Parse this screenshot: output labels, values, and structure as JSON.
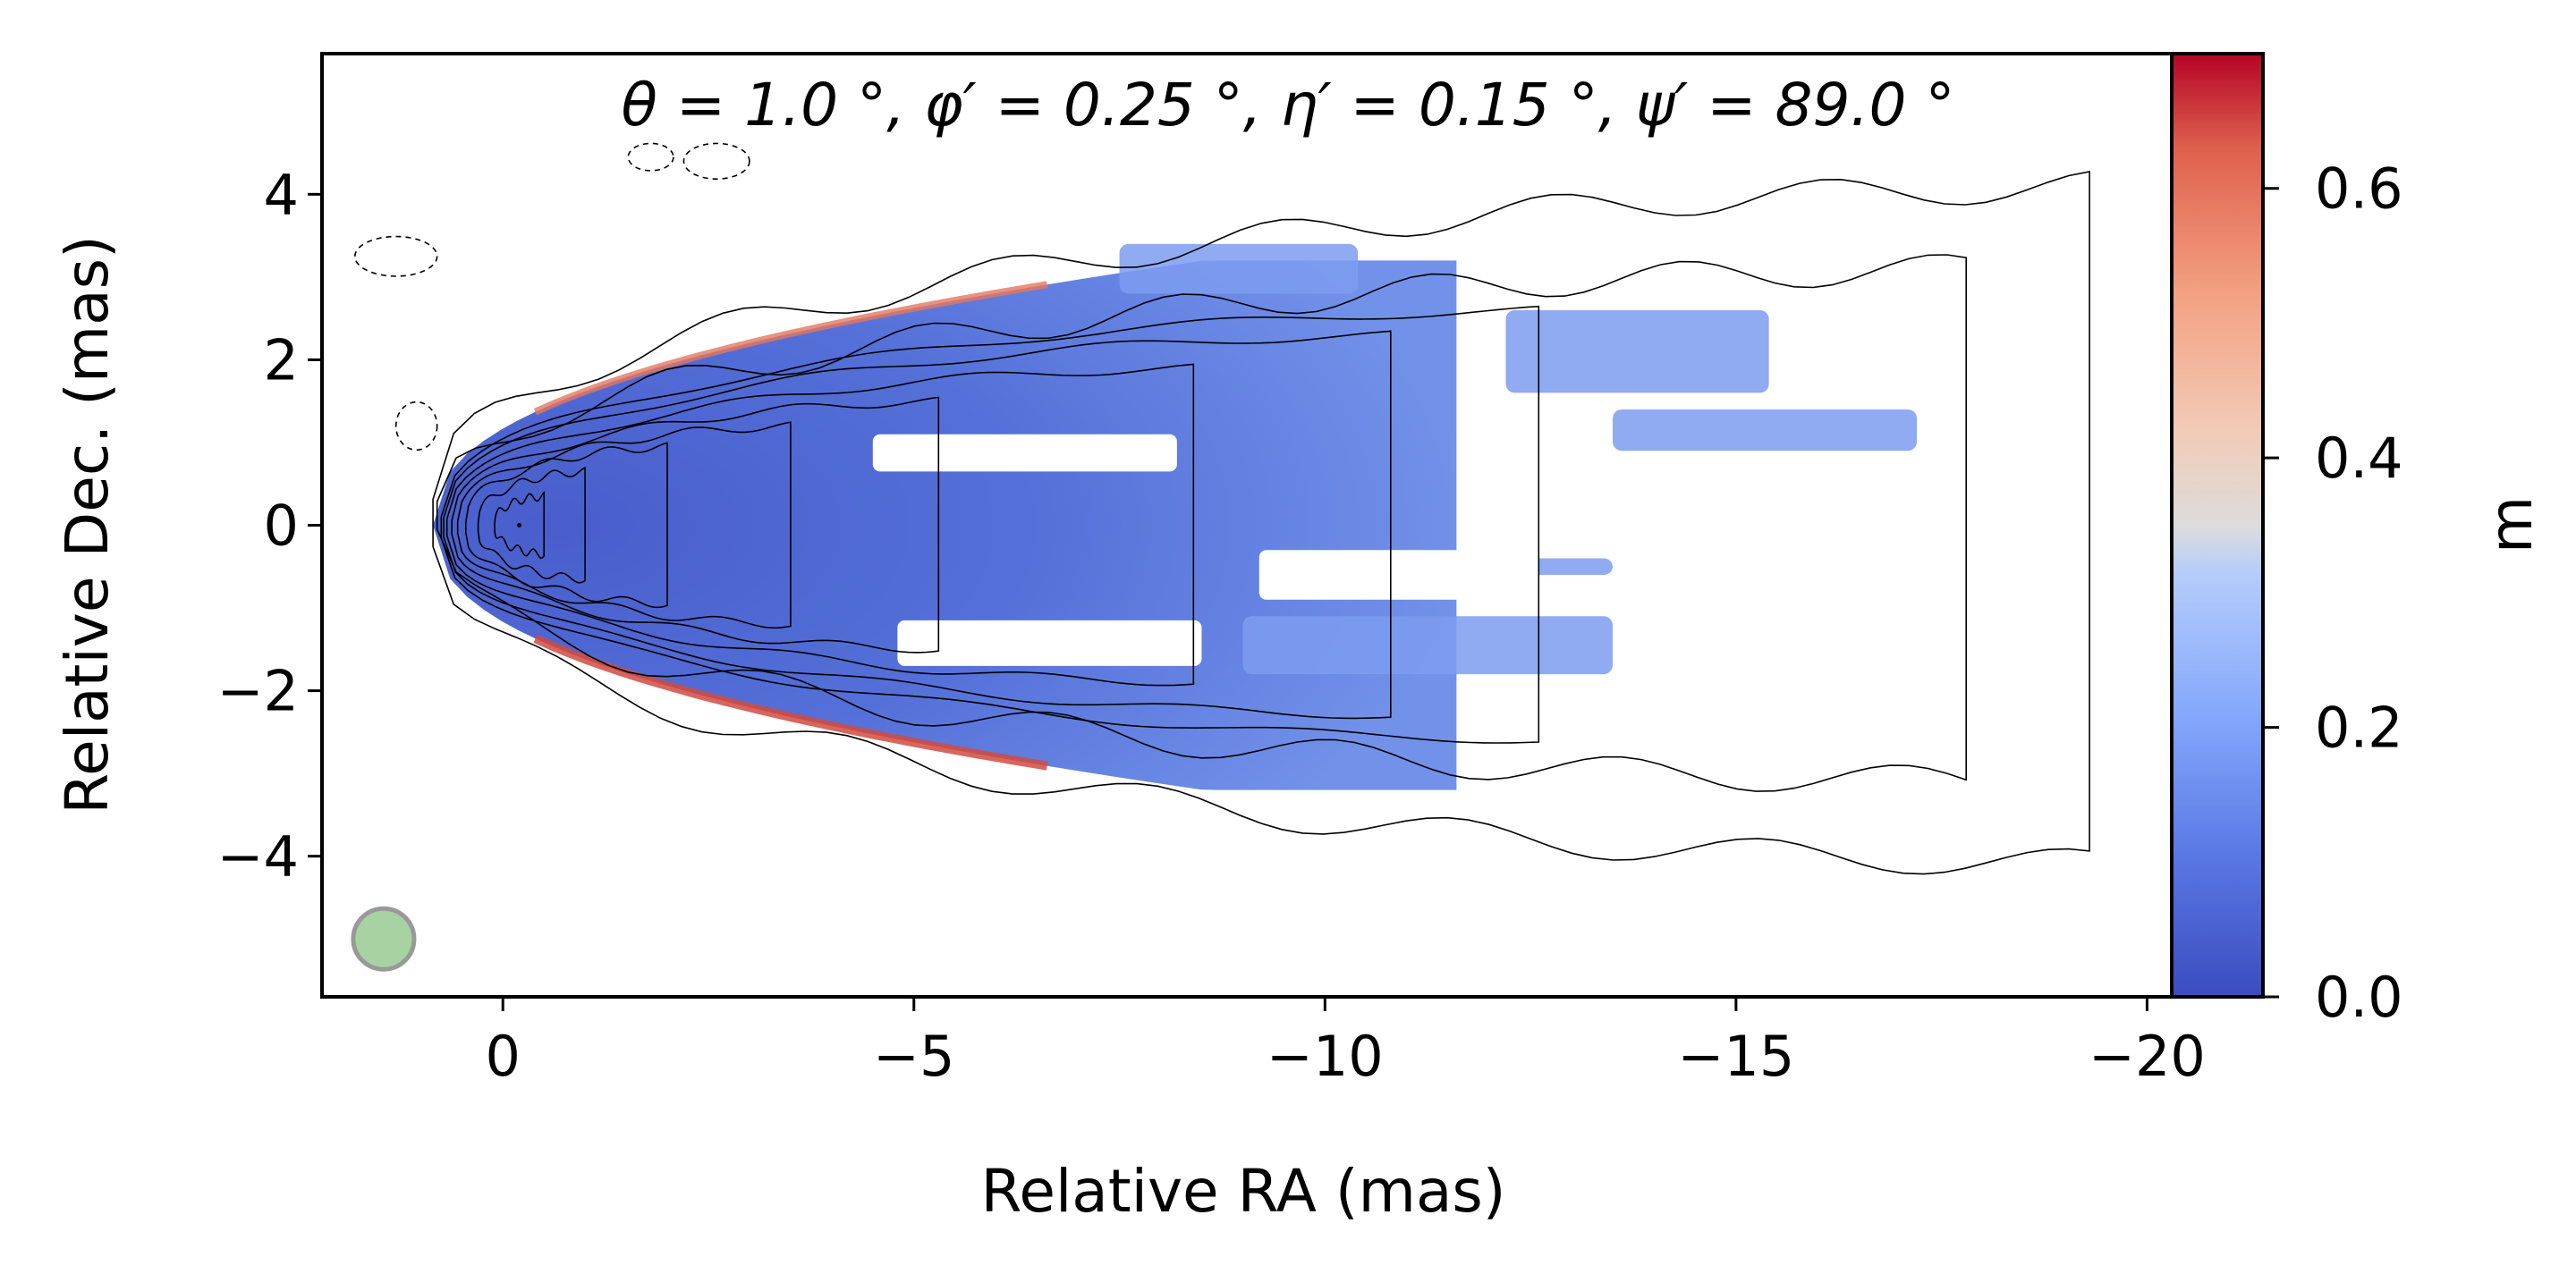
{
  "chart_data": {
    "type": "heatmap",
    "title": "θ = 1.0 °,  φ′ = 0.25 °,  η′ = 0.15 °,  ψ′ = 89.0 °",
    "xlabel": "Relative RA (mas)",
    "ylabel": "Relative Dec. (mas)",
    "xlim": [
      2.2,
      -20.3
    ],
    "ylim": [
      -5.7,
      5.7
    ],
    "x_ticks": [
      0,
      -5,
      -10,
      -15,
      -20
    ],
    "x_tick_labels": [
      "0",
      "−5",
      "−10",
      "−15",
      "−20"
    ],
    "y_ticks": [
      4,
      2,
      0,
      -2,
      -4
    ],
    "y_tick_labels": [
      "4",
      "2",
      "0",
      "−2",
      "−4"
    ],
    "colorbar": {
      "label": "m",
      "range": [
        0.0,
        0.7
      ],
      "ticks": [
        0.0,
        0.2,
        0.4,
        0.6
      ],
      "tick_labels": [
        "0.0",
        "0.2",
        "0.4",
        "0.6"
      ],
      "colormap": "coolwarm"
    },
    "beam": {
      "x": 1.45,
      "y": -5.0,
      "radius": 0.37,
      "color": "#a7d3a2"
    },
    "core": {
      "x": -0.2,
      "y": 0.0
    },
    "contours": [
      {
        "level": 1,
        "style": "solid",
        "extent_x": [
          0.85,
          -19.3
        ],
        "half_width_y": 4.1
      },
      {
        "level": 2,
        "style": "solid",
        "extent_x": [
          0.8,
          -17.8
        ],
        "half_width_y": 3.1
      },
      {
        "level": 3,
        "style": "solid",
        "extent_x": [
          0.75,
          -12.6
        ],
        "half_width_y": 2.6
      },
      {
        "level": 4,
        "style": "solid",
        "extent_x": [
          0.72,
          -10.8
        ],
        "half_width_y": 2.3
      },
      {
        "level": 5,
        "style": "solid",
        "extent_x": [
          0.68,
          -8.4
        ],
        "half_width_y": 1.9
      },
      {
        "level": 6,
        "style": "solid",
        "extent_x": [
          0.62,
          -5.3
        ],
        "half_width_y": 1.5
      },
      {
        "level": 7,
        "style": "solid",
        "extent_x": [
          0.55,
          -3.5
        ],
        "half_width_y": 1.2
      },
      {
        "level": 8,
        "style": "solid",
        "extent_x": [
          0.45,
          -2.0
        ],
        "half_width_y": 0.95
      },
      {
        "level": 9,
        "style": "solid",
        "extent_x": [
          0.3,
          -1.0
        ],
        "half_width_y": 0.65
      },
      {
        "level": 10,
        "style": "solid",
        "extent_x": [
          0.1,
          -0.5
        ],
        "half_width_y": 0.35
      }
    ],
    "negative_contours": [
      {
        "style": "dashed",
        "center": [
          -1.8,
          4.45
        ],
        "size": [
          0.55,
          0.2
        ]
      },
      {
        "style": "dashed",
        "center": [
          -2.6,
          4.4
        ],
        "size": [
          0.8,
          0.3
        ]
      },
      {
        "style": "dashed",
        "center": [
          1.3,
          3.25
        ],
        "size": [
          1.0,
          0.35
        ]
      },
      {
        "style": "dashed",
        "center": [
          1.05,
          1.2
        ],
        "size": [
          0.5,
          0.45
        ]
      }
    ]
  }
}
